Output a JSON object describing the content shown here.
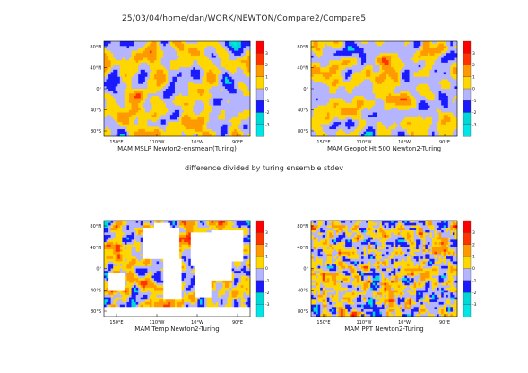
{
  "page": {
    "title": "25/03/04/home/dan/WORK/NEWTON/Compare2/Compare5",
    "note": "difference divided by turing ensemble stdev"
  },
  "colors": {
    "levels": [
      "#00e5e5",
      "#00d8d8",
      "#1a1aff",
      "#b4b4ff",
      "#ffd700",
      "#ff9900",
      "#ff3300",
      "#ff0000"
    ],
    "land": "#ffffff",
    "frame": "#000000"
  },
  "chart_data": [
    {
      "type": "heatmap",
      "caption": "MAM MSLP Newton2-ensmean(Turing)",
      "xticks": [
        "150°E",
        "110°W",
        "10°W",
        "90°E"
      ],
      "yticks": [
        "80°N",
        "40°N",
        "0°",
        "40°S",
        "80°S"
      ],
      "colorbar_ticks": [
        "3",
        "2",
        "1",
        "0",
        "-1",
        "-2",
        "-3"
      ],
      "seed": 11,
      "smooth": 4,
      "bias": -0.1,
      "mask_land": false
    },
    {
      "type": "heatmap",
      "caption": "MAM Geopot Ht 500 Newton2-Turing",
      "xticks": [
        "150°E",
        "110°W",
        "10°W",
        "90°E"
      ],
      "yticks": [
        "80°N",
        "40°N",
        "0°",
        "40°S",
        "80°S"
      ],
      "colorbar_ticks": [
        "3",
        "2",
        "1",
        "0",
        "-1",
        "-2",
        "-3"
      ],
      "seed": 23,
      "smooth": 4,
      "bias": 0.05,
      "mask_land": false
    },
    {
      "type": "heatmap",
      "caption": "MAM Temp Newton2-Turing",
      "xticks": [
        "150°E",
        "110°W",
        "10°W",
        "90°E"
      ],
      "yticks": [
        "80°N",
        "40°N",
        "0°",
        "40°S",
        "80°S"
      ],
      "colorbar_ticks": [
        "3",
        "2",
        "1",
        "0",
        "-1",
        "-2",
        "-3"
      ],
      "seed": 37,
      "smooth": 2,
      "bias": 0.2,
      "mask_land": true
    },
    {
      "type": "heatmap",
      "caption": "MAM PPT Newton2-Turing",
      "xticks": [
        "150°E",
        "110°W",
        "10°W",
        "90°E"
      ],
      "yticks": [
        "80°N",
        "40°N",
        "0°",
        "40°S",
        "80°S"
      ],
      "colorbar_ticks": [
        "3",
        "2",
        "1",
        "0",
        "-1",
        "-2",
        "-3"
      ],
      "seed": 53,
      "smooth": 1,
      "bias": 0.0,
      "mask_land": false
    }
  ]
}
